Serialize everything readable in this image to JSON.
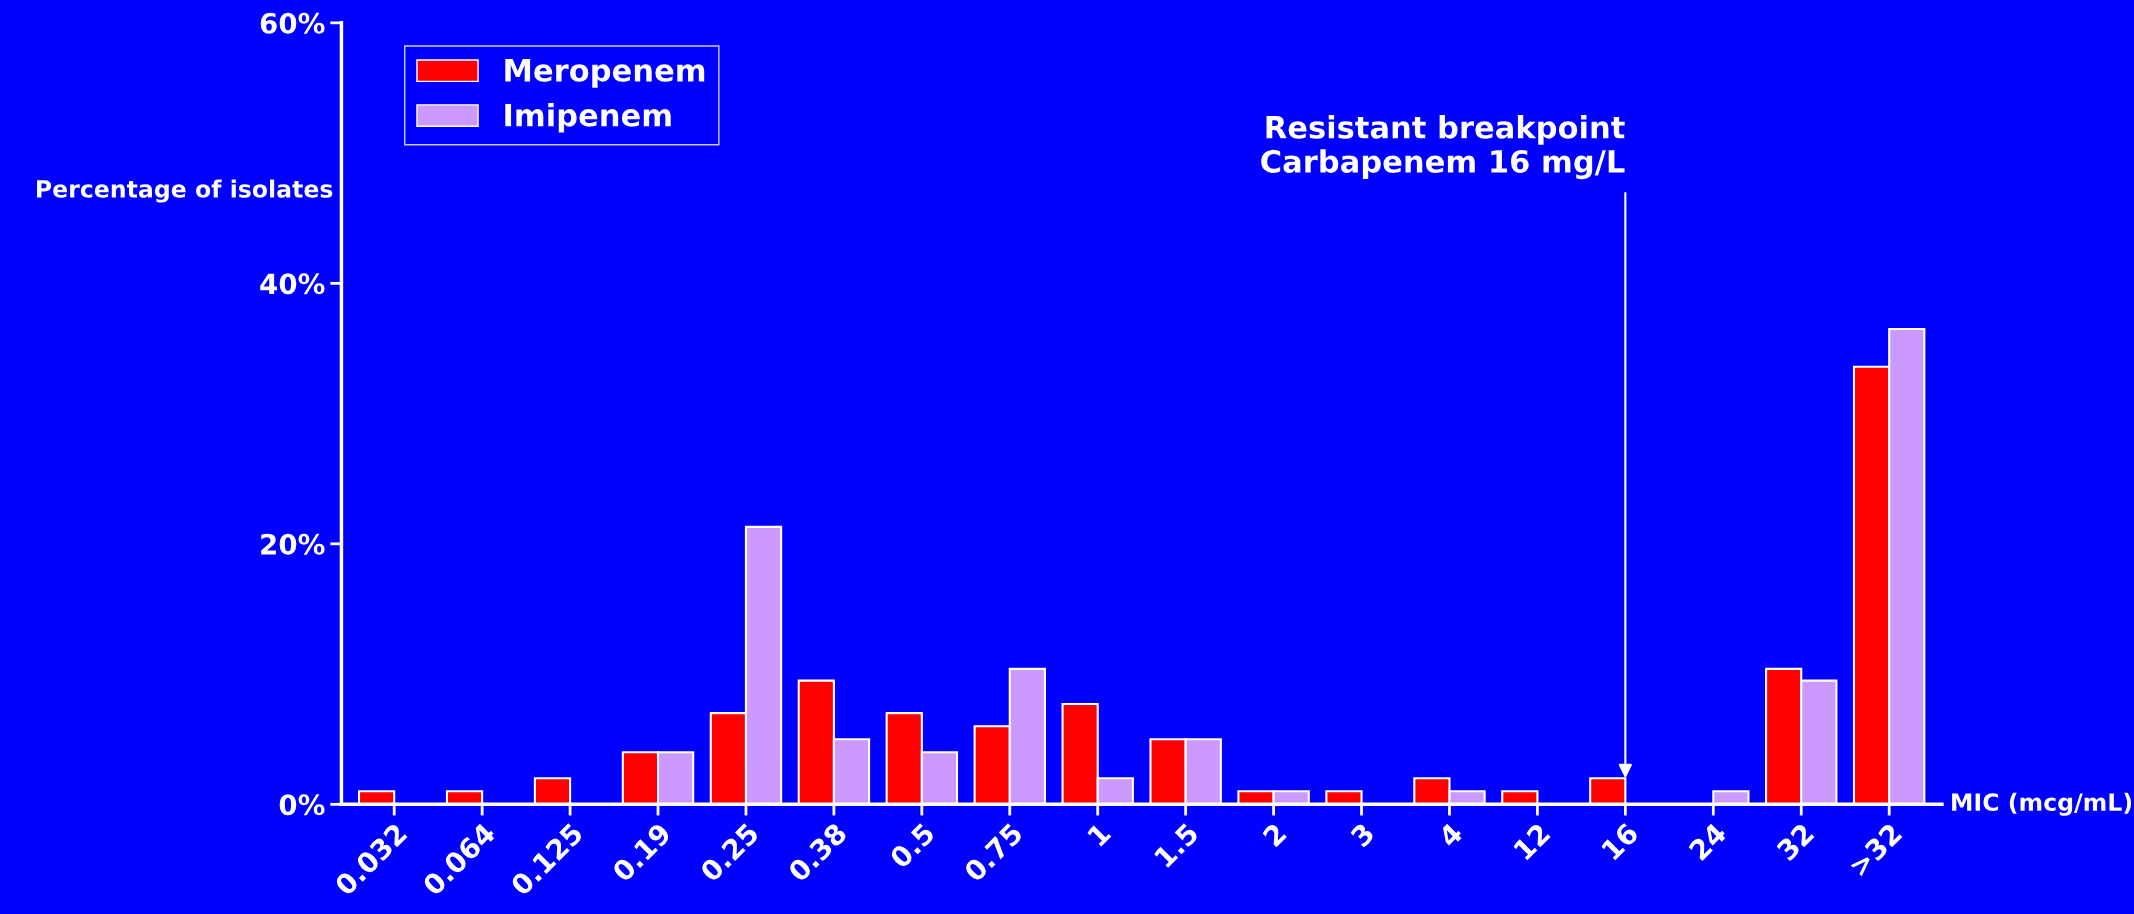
{
  "chart_data": {
    "type": "bar",
    "categories": [
      "0.032",
      "0.064",
      "0.125",
      "0.19",
      "0.25",
      "0.38",
      "0.5",
      "0.75",
      "1",
      "1.5",
      "2",
      "3",
      "4",
      "12",
      "16",
      "24",
      "32",
      ">32"
    ],
    "series": [
      {
        "name": "Meropenem",
        "color": "#ff0000",
        "values": [
          1,
          1,
          2,
          4,
          7,
          9.5,
          7,
          6,
          7.7,
          5,
          1,
          1,
          2,
          1,
          2,
          0,
          10.4,
          33.6
        ]
      },
      {
        "name": "Imipenem",
        "color": "#cc99ff",
        "values": [
          0,
          0,
          0,
          4,
          21.3,
          5,
          4,
          10.4,
          2,
          5,
          1,
          0,
          1,
          0,
          0,
          1,
          9.5,
          36.5
        ]
      }
    ],
    "ylabel": "Percentage of isolates",
    "xlabel": "MIC (mcg/mL)",
    "ylim": [
      0,
      60
    ],
    "yticks": [
      {
        "value": 0,
        "label": "0%"
      },
      {
        "value": 20,
        "label": "20%"
      },
      {
        "value": 40,
        "label": "40%"
      },
      {
        "value": 60,
        "label": "60%"
      }
    ],
    "annotations": [
      {
        "text": "Resistant breakpoint\nCarbapenem 16 mg/L",
        "x": "16",
        "y": 2
      }
    ],
    "legend": "top left",
    "grid": false
  }
}
